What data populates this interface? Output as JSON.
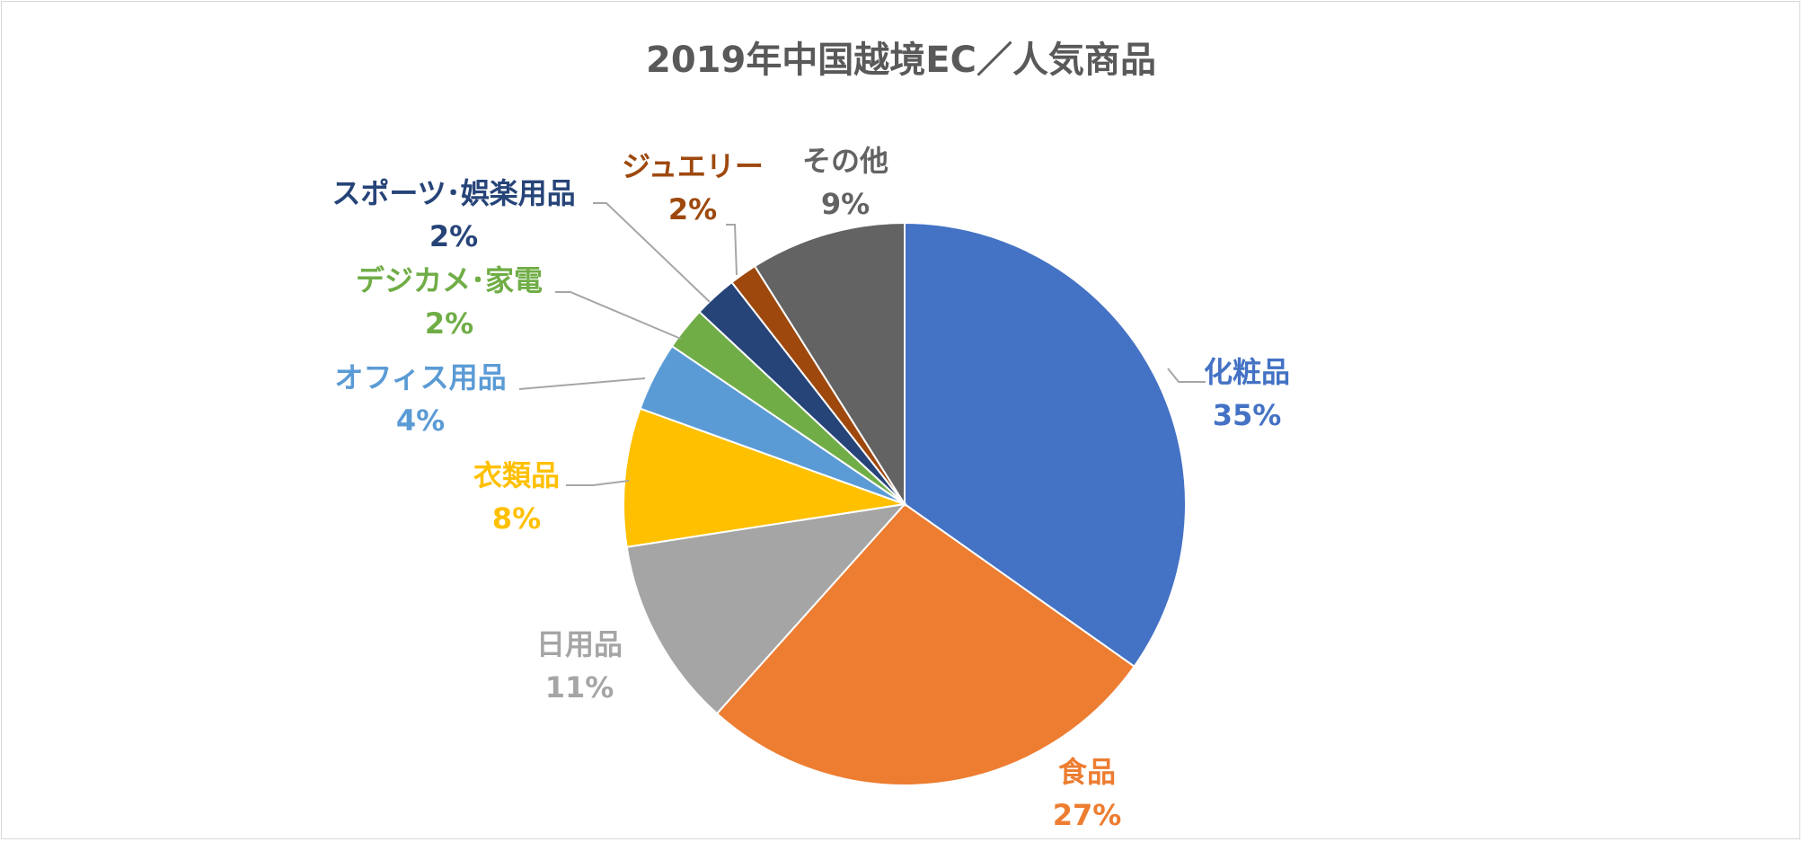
{
  "chart_data": {
    "type": "pie",
    "title": "2019年中国越境EC／人気商品",
    "legend": "none",
    "slices": [
      {
        "name": "化粧品",
        "value": 35,
        "label": "35%",
        "color": "#4472C4"
      },
      {
        "name": "食品",
        "value": 27,
        "label": "27%",
        "color": "#ED7D31"
      },
      {
        "name": "日用品",
        "value": 11,
        "label": "11%",
        "color": "#A5A5A5"
      },
      {
        "name": "衣類品",
        "value": 8,
        "label": "8%",
        "color": "#FFC000"
      },
      {
        "name": "オフィス用品",
        "value": 4,
        "label": "4%",
        "color": "#5B9BD5"
      },
      {
        "name": "デジカメ･家電",
        "value": 2.5,
        "label": "2%",
        "color": "#70AD47"
      },
      {
        "name": "スポーツ･娯楽用品",
        "value": 2.5,
        "label": "2%",
        "color": "#264478"
      },
      {
        "name": "ジュエリー",
        "value": 1.6,
        "label": "2%",
        "color": "#9E480E"
      },
      {
        "name": "その他",
        "value": 9,
        "label": "9%",
        "color": "#636363"
      }
    ]
  }
}
